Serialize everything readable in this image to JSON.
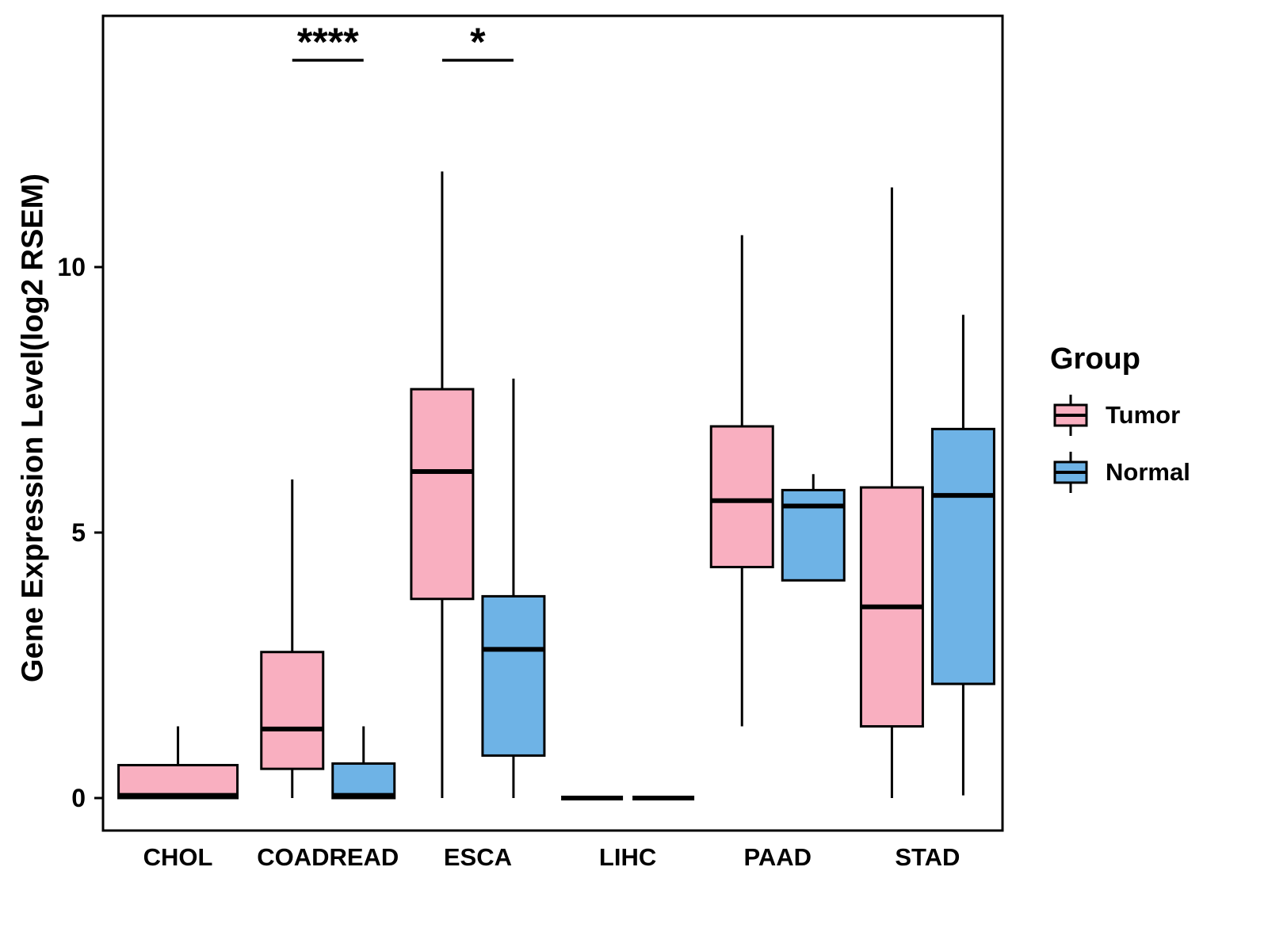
{
  "chart_data": {
    "type": "boxplot",
    "title": "",
    "xlabel": "",
    "ylabel": "Gene Expression Level(log2 RSEM)",
    "ylim": [
      -0.65,
      14.7
    ],
    "yticks": [
      0,
      5,
      10
    ],
    "grid": false,
    "categories": [
      "CHOL",
      "COADREAD",
      "ESCA",
      "LIHC",
      "PAAD",
      "STAD"
    ],
    "legend": {
      "title": "Group",
      "position": "right"
    },
    "series": [
      {
        "name": "Tumor",
        "color": "#F9AFC0",
        "boxes": [
          {
            "category": "CHOL",
            "min": 0,
            "q1": 0,
            "median": 0.05,
            "q3": 0.62,
            "max": 1.35
          },
          {
            "category": "COADREAD",
            "min": 0,
            "q1": 0.55,
            "median": 1.3,
            "q3": 2.75,
            "max": 6.0
          },
          {
            "category": "ESCA",
            "min": 0,
            "q1": 3.75,
            "median": 6.15,
            "q3": 7.7,
            "max": 11.8
          },
          {
            "category": "LIHC",
            "min": 0,
            "q1": 0,
            "median": 0,
            "q3": 0,
            "max": 0
          },
          {
            "category": "PAAD",
            "min": 1.35,
            "q1": 4.35,
            "median": 5.6,
            "q3": 7.0,
            "max": 10.6
          },
          {
            "category": "STAD",
            "min": 0,
            "q1": 1.35,
            "median": 3.6,
            "q3": 5.85,
            "max": 11.5
          }
        ]
      },
      {
        "name": "Normal",
        "color": "#6EB3E6",
        "boxes": [
          null,
          {
            "category": "COADREAD",
            "min": 0,
            "q1": 0,
            "median": 0.05,
            "q3": 0.65,
            "max": 1.35
          },
          {
            "category": "ESCA",
            "min": 0,
            "q1": 0.8,
            "median": 2.8,
            "q3": 3.8,
            "max": 7.9
          },
          {
            "category": "LIHC",
            "min": 0,
            "q1": 0,
            "median": 0,
            "q3": 0,
            "max": 0
          },
          {
            "category": "PAAD",
            "min": 4.1,
            "q1": 4.1,
            "median": 5.5,
            "q3": 5.8,
            "max": 6.1
          },
          {
            "category": "STAD",
            "min": 0.05,
            "q1": 2.15,
            "median": 5.7,
            "q3": 6.95,
            "max": 9.1
          }
        ]
      }
    ],
    "annotations": [
      {
        "category": "COADREAD",
        "label": "****"
      },
      {
        "category": "ESCA",
        "label": "*"
      }
    ]
  }
}
